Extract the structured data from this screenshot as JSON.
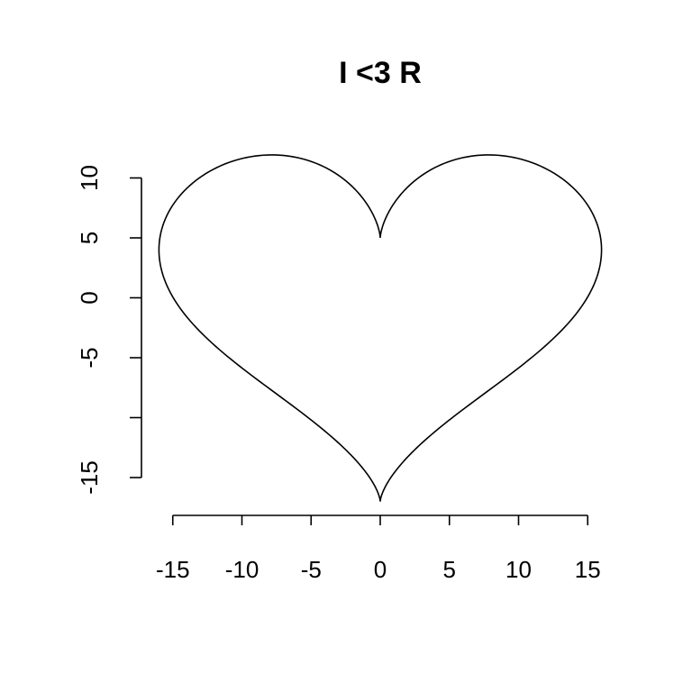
{
  "chart_data": {
    "type": "line",
    "title": "I <3 R",
    "xlabel": "",
    "ylabel": "",
    "equation": {
      "x": "16*sin(t)^3",
      "y": "13*cos(t) - 5*cos(2*t) - 2*cos(3*t) - cos(4*t)",
      "t_range": [
        0,
        6.283185
      ]
    },
    "x_axis": {
      "ticks": [
        -15,
        -10,
        -5,
        0,
        5,
        10,
        15
      ],
      "tick_labels": [
        "-15",
        "-10",
        "-5",
        "0",
        "5",
        "10",
        "15"
      ]
    },
    "y_axis": {
      "ticks": [
        -15,
        -10,
        -5,
        0,
        5,
        10
      ],
      "tick_labels": [
        "-15",
        "",
        "-5",
        "0",
        "5",
        "10"
      ]
    },
    "grid": false,
    "line_color": "#000000"
  }
}
